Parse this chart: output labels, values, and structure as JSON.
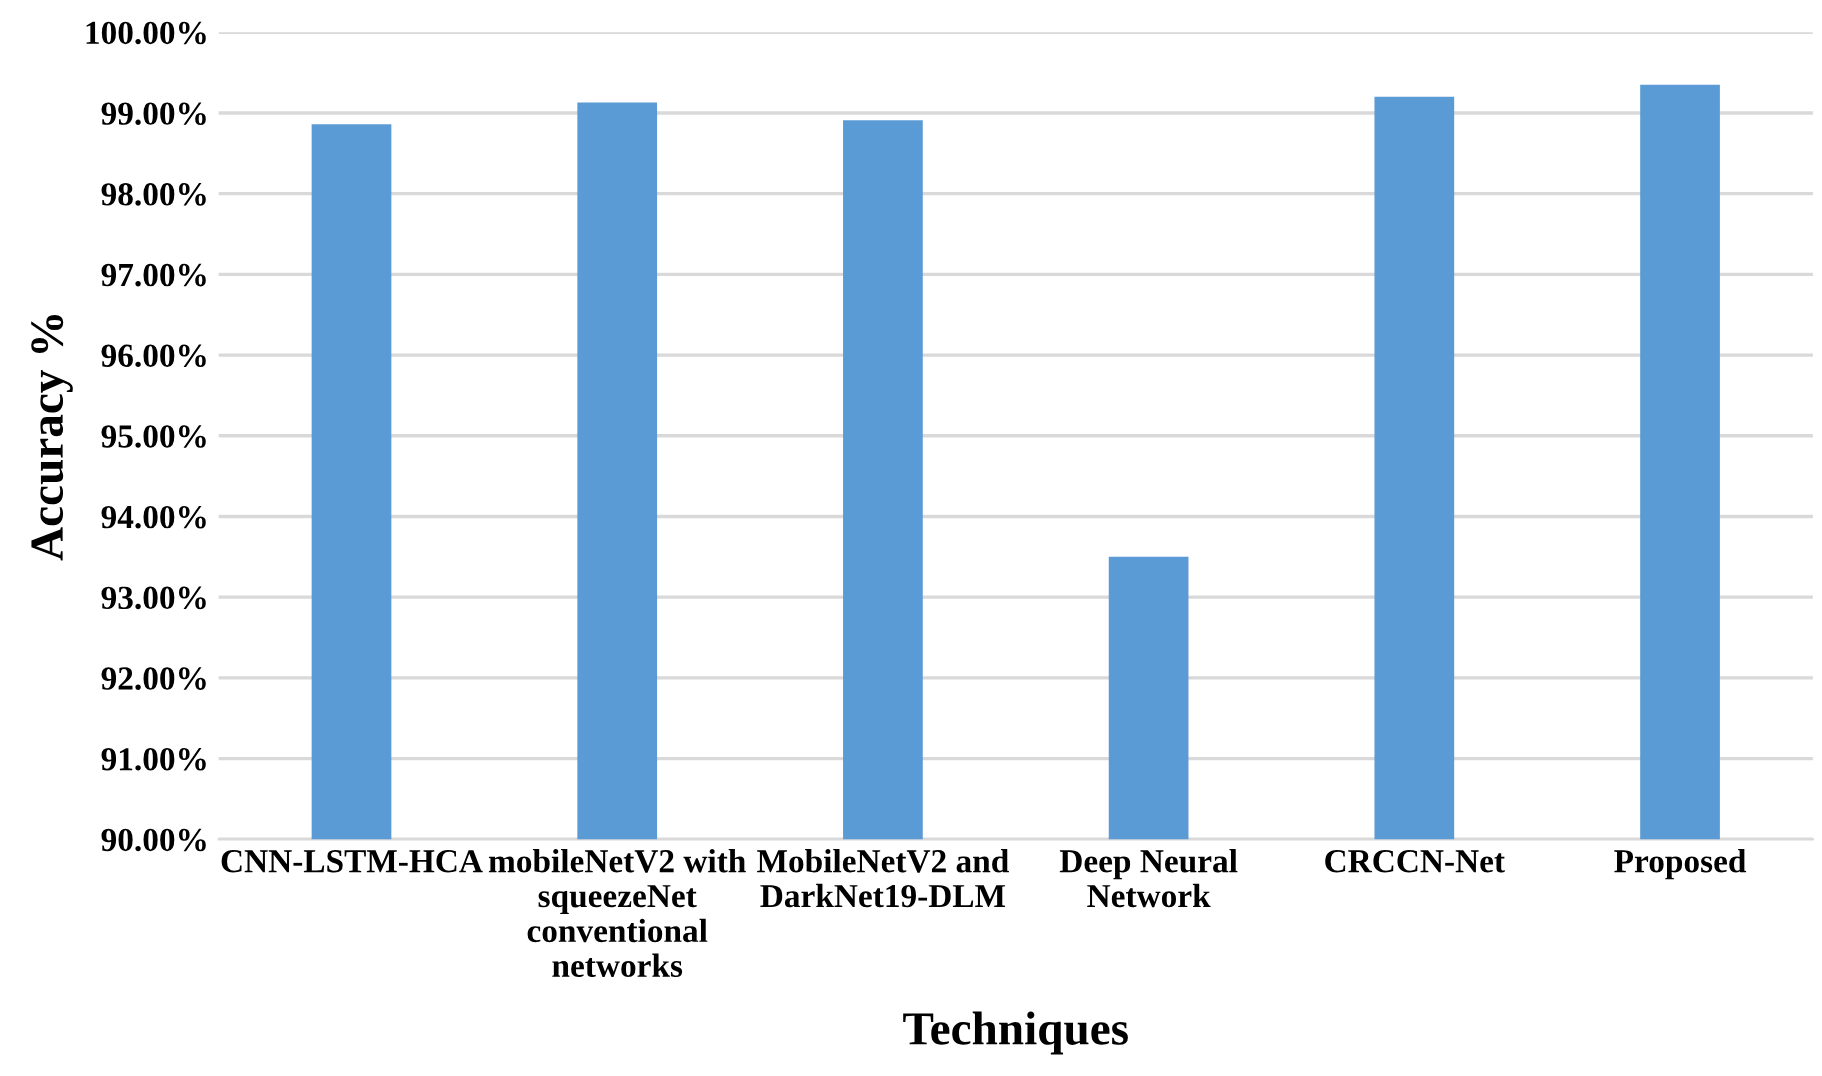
{
  "chart_data": {
    "type": "bar",
    "xlabel": "Techniques",
    "ylabel": "Accuracy %",
    "categories": [
      "CNN-LSTM-HCA",
      "mobileNetV2 with\nsqueezeNet\nconventional\nnetworks",
      "MobileNetV2 and\nDarkNet19-DLM",
      "Deep Neural\nNetwork",
      "CRCCN-Net",
      "Proposed"
    ],
    "values": [
      98.86,
      99.13,
      98.91,
      93.5,
      99.2,
      99.35
    ],
    "color": "#5b9bd5",
    "ylim": [
      90,
      100
    ],
    "yticks": [
      {
        "value": 90,
        "label": "90.00%"
      },
      {
        "value": 91,
        "label": "91.00%"
      },
      {
        "value": 92,
        "label": "92.00%"
      },
      {
        "value": 93,
        "label": "93.00%"
      },
      {
        "value": 94,
        "label": "94.00%"
      },
      {
        "value": 95,
        "label": "95.00%"
      },
      {
        "value": 96,
        "label": "96.00%"
      },
      {
        "value": 97,
        "label": "97.00%"
      },
      {
        "value": 98,
        "label": "98.00%"
      },
      {
        "value": 99,
        "label": "99.00%"
      },
      {
        "value": 100,
        "label": "100.00%"
      }
    ],
    "grid": "y",
    "legend": false
  }
}
